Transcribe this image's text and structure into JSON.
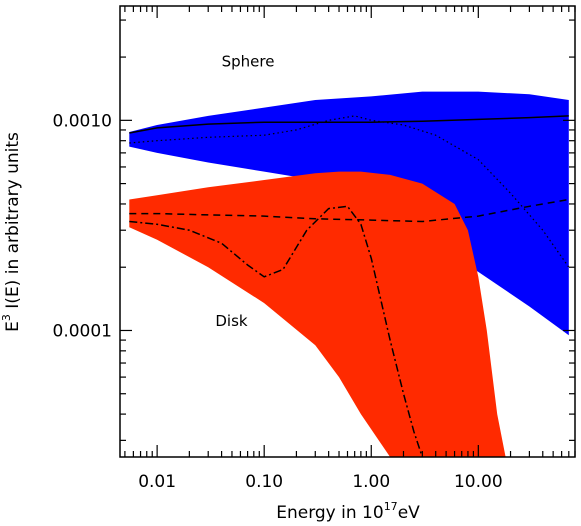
{
  "chart_data": {
    "type": "area",
    "title": "",
    "xlabel": {
      "prefix": "Energy in 10",
      "superscript": "17",
      "suffix": "eV"
    },
    "ylabel": {
      "prefix": "E",
      "superscript": "3",
      "suffix": " I(E) in arbitrary units"
    },
    "x_scale": "log",
    "y_scale": "log",
    "xlim": [
      0.0045,
      80
    ],
    "ylim": [
      2.5e-05,
      0.0035
    ],
    "x_ticks": [
      {
        "value": 0.01,
        "label": "0.01"
      },
      {
        "value": 0.1,
        "label": "0.10"
      },
      {
        "value": 1.0,
        "label": "1.00"
      },
      {
        "value": 10.0,
        "label": "10.00"
      }
    ],
    "y_ticks": [
      {
        "value": 0.001,
        "label": "0.0010"
      },
      {
        "value": 0.0001,
        "label": "0.0001"
      }
    ],
    "annotations": [
      {
        "text": "Sphere",
        "x": 0.04,
        "y": 0.0018
      },
      {
        "text": "Disk",
        "x": 0.035,
        "y": 0.000105
      }
    ],
    "bands": [
      {
        "key": "sphere",
        "color": "#0000ff",
        "x": [
          0.0055,
          0.01,
          0.03,
          0.1,
          0.3,
          1.0,
          3.0,
          10.0,
          30.0,
          70.0
        ],
        "upper": [
          0.00088,
          0.00095,
          0.00105,
          0.00115,
          0.00125,
          0.0013,
          0.00137,
          0.00137,
          0.00133,
          0.00125
        ],
        "lower": [
          0.00075,
          0.0007,
          0.00063,
          0.00057,
          0.00052,
          0.0004,
          0.00027,
          0.00019,
          0.00013,
          9.5e-05
        ]
      },
      {
        "key": "disk",
        "color": "#ff2a00",
        "x": [
          0.0055,
          0.01,
          0.03,
          0.1,
          0.3,
          0.5,
          0.8,
          1.5,
          3.0,
          6.0,
          8.0,
          10.0,
          12.0,
          15.0,
          18.0
        ],
        "upper": [
          0.00042,
          0.00044,
          0.00048,
          0.00052,
          0.00056,
          0.00057,
          0.00057,
          0.00055,
          0.0005,
          0.0004,
          0.0003,
          0.00018,
          0.0001,
          4e-05,
          2.5e-05
        ],
        "lower": [
          0.00031,
          0.00027,
          0.0002,
          0.000135,
          8.5e-05,
          6e-05,
          4e-05,
          2.5e-05,
          2.5e-05,
          2.5e-05,
          2.5e-05,
          2.5e-05,
          2.5e-05,
          2.5e-05,
          2.5e-05
        ]
      }
    ],
    "series": [
      {
        "key": "solid",
        "dash": "solid",
        "x": [
          0.0055,
          0.01,
          0.03,
          0.1,
          0.3,
          1.0,
          3.0,
          10.0,
          30.0,
          70.0
        ],
        "y": [
          0.00087,
          0.00092,
          0.00096,
          0.00098,
          0.00098,
          0.00098,
          0.00099,
          0.00101,
          0.00103,
          0.00105
        ]
      },
      {
        "key": "dotted",
        "dash": "dotted",
        "x": [
          0.0055,
          0.01,
          0.03,
          0.1,
          0.2,
          0.4,
          0.7,
          1.0,
          2.0,
          4.0,
          10.0,
          20.0,
          40.0,
          70.0
        ],
        "y": [
          0.00078,
          0.0008,
          0.00083,
          0.00085,
          0.0009,
          0.001,
          0.00105,
          0.001,
          0.00095,
          0.00085,
          0.00065,
          0.00045,
          0.0003,
          0.0002
        ]
      },
      {
        "key": "dashed",
        "dash": "dashed",
        "x": [
          0.0055,
          0.01,
          0.03,
          0.1,
          0.3,
          1.0,
          3.0,
          10.0,
          30.0,
          70.0
        ],
        "y": [
          0.00036,
          0.00036,
          0.000355,
          0.00035,
          0.00034,
          0.000335,
          0.00033,
          0.00035,
          0.00039,
          0.00042
        ]
      },
      {
        "key": "dashdot",
        "dash": "dashdot",
        "x": [
          0.0055,
          0.01,
          0.02,
          0.04,
          0.07,
          0.1,
          0.15,
          0.25,
          0.4,
          0.6,
          0.8,
          1.0,
          1.5,
          2.0,
          2.5,
          3.0
        ],
        "y": [
          0.00033,
          0.00032,
          0.0003,
          0.00026,
          0.000205,
          0.00018,
          0.000195,
          0.0003,
          0.00038,
          0.00039,
          0.00032,
          0.00022,
          9e-05,
          5e-05,
          3.3e-05,
          2.5e-05
        ]
      }
    ]
  }
}
